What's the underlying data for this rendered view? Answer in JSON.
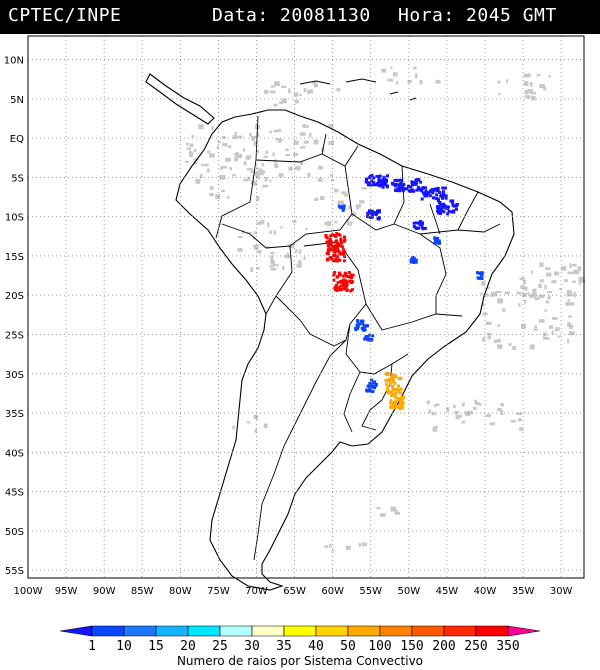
{
  "header": {
    "agency": "CPTEC/INPE",
    "date_text": "Data: 20081130",
    "hour_text": "Hora: 2045 GMT"
  },
  "map": {
    "lon_range": [
      -100,
      -27
    ],
    "lat_range": [
      -56,
      13
    ],
    "lon_ticks": [
      "100W",
      "95W",
      "90W",
      "85W",
      "80W",
      "75W",
      "70W",
      "65W",
      "60W",
      "55W",
      "50W",
      "45W",
      "40W",
      "35W",
      "30W"
    ],
    "lat_ticks": [
      "10N",
      "5N",
      "EQ",
      "5S",
      "10S",
      "15S",
      "20S",
      "25S",
      "30S",
      "35S",
      "40S",
      "45S",
      "50S",
      "55S"
    ]
  },
  "legend": {
    "title": "Numero de raios por Sistema Convectivo",
    "labels": [
      "1",
      "10",
      "15",
      "20",
      "25",
      "30",
      "35",
      "40",
      "50",
      "100",
      "150",
      "200",
      "250",
      "350"
    ],
    "colors": [
      "#1414ff",
      "#0a46ff",
      "#1e78ff",
      "#14b4ff",
      "#00e6ff",
      "#b4ffff",
      "#ffffc8",
      "#ffff00",
      "#ffd200",
      "#ffaa00",
      "#ff8200",
      "#ff5a00",
      "#ff2800",
      "#ff0000",
      "#ff0096"
    ]
  }
}
